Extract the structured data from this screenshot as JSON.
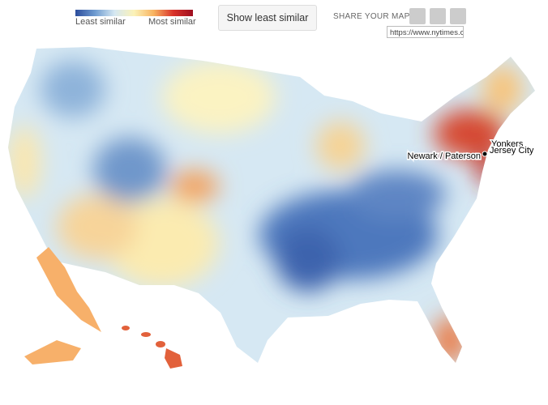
{
  "legend": {
    "low": "Least similar",
    "high": "Most similar"
  },
  "button": "Show least similar",
  "share": {
    "label": "SHARE YOUR MAP:",
    "url": "https://www.nytimes.cc"
  },
  "cities": [
    {
      "label": "Yonkers"
    },
    {
      "label": "Jersey City"
    },
    {
      "label": "Newark / Paterson"
    }
  ]
}
